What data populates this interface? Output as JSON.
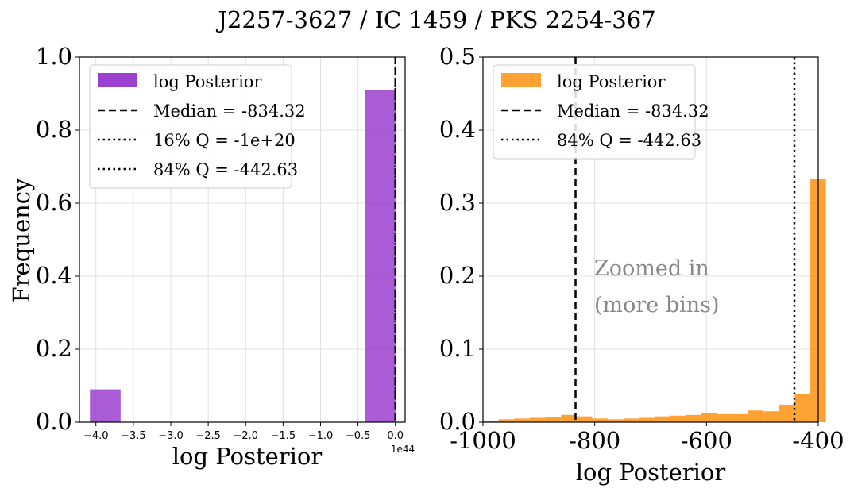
{
  "figure": {
    "suptitle": "J2257-3627 / IC 1459 / PKS 2254-367"
  },
  "colors": {
    "left_bar": "#9b3fd0",
    "right_bar": "#fe8c00",
    "grid": "#e0e0e0",
    "annotation": "#888888"
  },
  "chart_data": [
    {
      "type": "bar",
      "title": "",
      "xlabel": "log Posterior",
      "ylabel": "Frequency",
      "xlim": [
        -4.22,
        0.13
      ],
      "ylim": [
        0.0,
        1.0
      ],
      "x_offset_text": "1e44",
      "x_tick_values": [
        -4.0,
        -3.5,
        -3.0,
        -2.5,
        -2.0,
        -1.5,
        -1.0,
        -0.5,
        0.0
      ],
      "x_tick_labels": [
        "−4.0",
        "−3.5",
        "−3.0",
        "−2.5",
        "−2.0",
        "−1.5",
        "−1.0",
        "−0.5",
        "0.0"
      ],
      "y_tick_values": [
        0.0,
        0.2,
        0.4,
        0.6,
        0.8,
        1.0
      ],
      "y_tick_labels": [
        "0.0",
        "0.2",
        "0.4",
        "0.6",
        "0.8",
        "1.0"
      ],
      "grid": true,
      "legend_position": "upper-left",
      "bars": [
        {
          "x0": -4.08,
          "x1": -3.67,
          "value": 0.09
        },
        {
          "x0": -0.41,
          "x1": 0.0,
          "value": 0.91
        }
      ],
      "lines": [
        {
          "name": "Median = -834.32",
          "x": 0.0,
          "style": "dashed"
        },
        {
          "name": "16% Q = -1e+20",
          "x": 0.0,
          "style": "dotted"
        },
        {
          "name": "84% Q = -442.63",
          "x": 0.0,
          "style": "dotted"
        }
      ],
      "series_name": "log Posterior"
    },
    {
      "type": "bar",
      "title": "",
      "xlabel": "log Posterior",
      "ylabel": "",
      "xlim": [
        -1000,
        -400
      ],
      "ylim": [
        0.0,
        0.5
      ],
      "x_tick_values": [
        -1000,
        -800,
        -600,
        -400
      ],
      "x_tick_labels": [
        "-1000",
        "-800",
        "-600",
        "-400"
      ],
      "y_tick_values": [
        0.0,
        0.1,
        0.2,
        0.3,
        0.4,
        0.5
      ],
      "y_tick_labels": [
        "0.0",
        "0.1",
        "0.2",
        "0.3",
        "0.4",
        "0.5"
      ],
      "grid": true,
      "legend_position": "upper-left",
      "bin_start": -1000,
      "bin_width": 27.9,
      "values": [
        0.002,
        0.004,
        0.005,
        0.006,
        0.007,
        0.01,
        0.008,
        0.005,
        0.004,
        0.005,
        0.006,
        0.008,
        0.009,
        0.01,
        0.013,
        0.011,
        0.011,
        0.016,
        0.015,
        0.024,
        0.039,
        0.333
      ],
      "lines": [
        {
          "name": "Median = -834.32",
          "x": -834.32,
          "style": "dashed"
        },
        {
          "name": "84% Q = -442.63",
          "x": -442.63,
          "style": "dotted"
        }
      ],
      "series_name": "log Posterior",
      "annotation": [
        "Zoomed in",
        "(more bins)"
      ]
    }
  ]
}
